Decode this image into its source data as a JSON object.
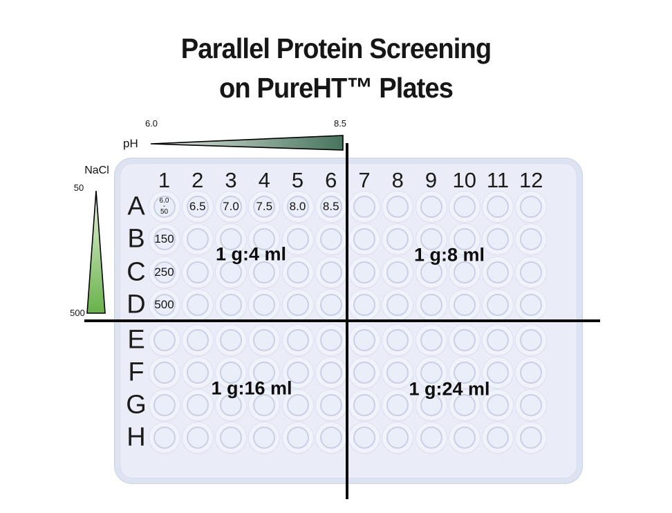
{
  "title": {
    "line1": "Parallel Protein Screening",
    "line2": "on PureHT™ Plates"
  },
  "ph_axis": {
    "label": "pH",
    "min": "6.0",
    "max": "8.5",
    "gradient_start": "#e8ebe7",
    "gradient_end": "#47745c"
  },
  "nacl_axis": {
    "label": "NaCl",
    "min": "50",
    "max": "500",
    "gradient_start": "#e9f4de",
    "gradient_end": "#68b14a"
  },
  "plate": {
    "column_headers": [
      "1",
      "2",
      "3",
      "4",
      "5",
      "6",
      "7",
      "8",
      "9",
      "10",
      "11",
      "12"
    ],
    "row_headers": [
      "A",
      "B",
      "C",
      "D",
      "E",
      "F",
      "G",
      "H"
    ],
    "well_annotations": [
      {
        "well": "A1",
        "lines": [
          "6.0",
          "-",
          "50"
        ]
      },
      {
        "well": "A2",
        "lines": [
          "6.5"
        ]
      },
      {
        "well": "A3",
        "lines": [
          "7.0"
        ]
      },
      {
        "well": "A4",
        "lines": [
          "7.5"
        ]
      },
      {
        "well": "A5",
        "lines": [
          "8.0"
        ]
      },
      {
        "well": "A6",
        "lines": [
          "8.5"
        ]
      },
      {
        "well": "B1",
        "lines": [
          "150"
        ]
      },
      {
        "well": "C1",
        "lines": [
          "250"
        ]
      },
      {
        "well": "D1",
        "lines": [
          "500"
        ]
      }
    ]
  },
  "quadrants": [
    {
      "label": "1 g:4 ml"
    },
    {
      "label": "1 g:8 ml"
    },
    {
      "label": "1 g:16 ml"
    },
    {
      "label": "1 g:24 ml"
    }
  ]
}
